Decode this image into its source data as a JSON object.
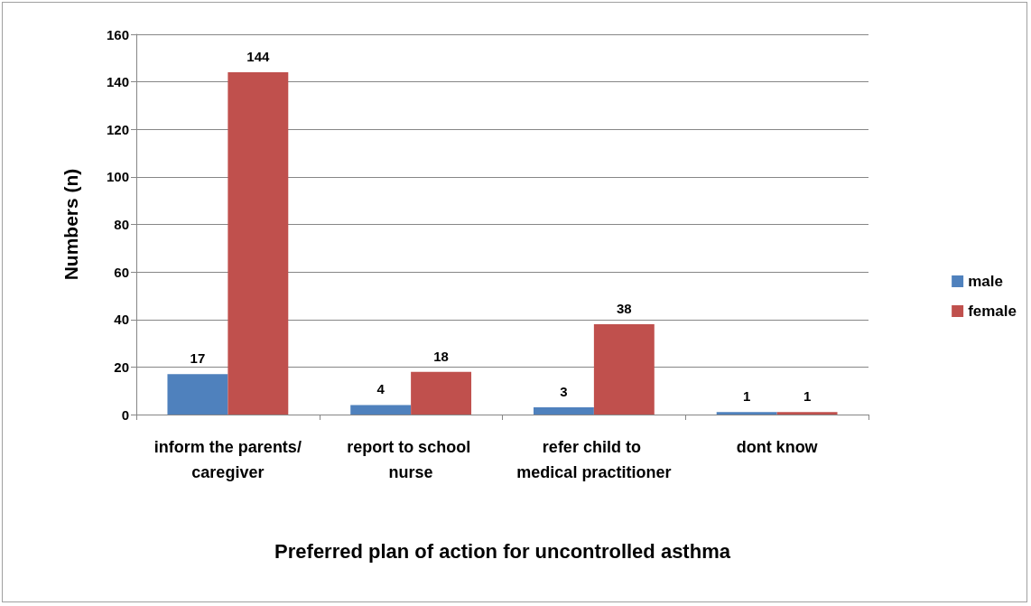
{
  "chart_data": {
    "type": "bar",
    "xlabel": "Preferred plan of action for uncontrolled asthma",
    "ylabel": "Numbers (n)",
    "categories": [
      "inform the parents/caregiver",
      "report to school nurse",
      "refer child to medical practitioner",
      "dont know"
    ],
    "series": [
      {
        "name": "male",
        "color": "#4f81bd",
        "values": [
          17,
          4,
          3,
          1
        ]
      },
      {
        "name": "female",
        "color": "#c0504d",
        "values": [
          144,
          18,
          38,
          1
        ]
      }
    ],
    "ylim": [
      0,
      160
    ],
    "yticks": [
      0,
      20,
      40,
      60,
      80,
      100,
      120,
      140,
      160
    ],
    "grid": "y",
    "legend": "right",
    "data_labels": true
  }
}
